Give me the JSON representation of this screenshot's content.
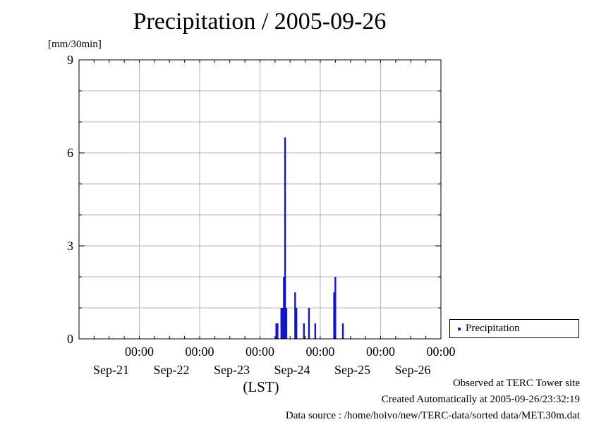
{
  "chart_data": {
    "type": "bar",
    "title": "Precipitation / 2005-09-26",
    "ylabel": "[mm/30min]",
    "xlabel": "(LST)",
    "ylim": [
      0,
      9
    ],
    "yticks": [
      "0",
      "3",
      "6",
      "9"
    ],
    "xlim": [
      "2005-09-20 00:00",
      "2005-09-26 00:00"
    ],
    "xticks": [
      {
        "time": "00:00",
        "date": "Sep-21"
      },
      {
        "time": "00:00",
        "date": "Sep-22"
      },
      {
        "time": "00:00",
        "date": "Sep-23"
      },
      {
        "time": "00:00",
        "date": "Sep-24"
      },
      {
        "time": "00:00",
        "date": "Sep-25"
      },
      {
        "time": "00:00",
        "date": "Sep-26"
      }
    ],
    "grid": true,
    "legend": {
      "position": "right",
      "entries": [
        "Precipitation"
      ]
    },
    "series": [
      {
        "name": "Precipitation",
        "color": "#1414c8",
        "points": [
          {
            "x": "2005-09-23 06:30",
            "y": 0.5
          },
          {
            "x": "2005-09-23 07:00",
            "y": 0.5
          },
          {
            "x": "2005-09-23 08:30",
            "y": 1.0
          },
          {
            "x": "2005-09-23 09:00",
            "y": 1.0
          },
          {
            "x": "2005-09-23 09:30",
            "y": 2.0
          },
          {
            "x": "2005-09-23 10:00",
            "y": 6.5
          },
          {
            "x": "2005-09-23 10:30",
            "y": 1.0
          },
          {
            "x": "2005-09-23 14:00",
            "y": 1.5
          },
          {
            "x": "2005-09-23 14:30",
            "y": 1.0
          },
          {
            "x": "2005-09-23 17:30",
            "y": 0.5
          },
          {
            "x": "2005-09-23 19:30",
            "y": 1.0
          },
          {
            "x": "2005-09-23 22:00",
            "y": 0.5
          },
          {
            "x": "2005-09-24 05:30",
            "y": 1.5
          },
          {
            "x": "2005-09-24 06:00",
            "y": 2.0
          },
          {
            "x": "2005-09-24 09:00",
            "y": 0.5
          }
        ]
      }
    ]
  },
  "footer": {
    "site": "Observed at TERC Tower site",
    "created": "Created Automatically at 2005-09-26/23:32:19",
    "source": "Data source : /home/hoivo/new/TERC-data/sorted  data/MET.30m.dat"
  }
}
